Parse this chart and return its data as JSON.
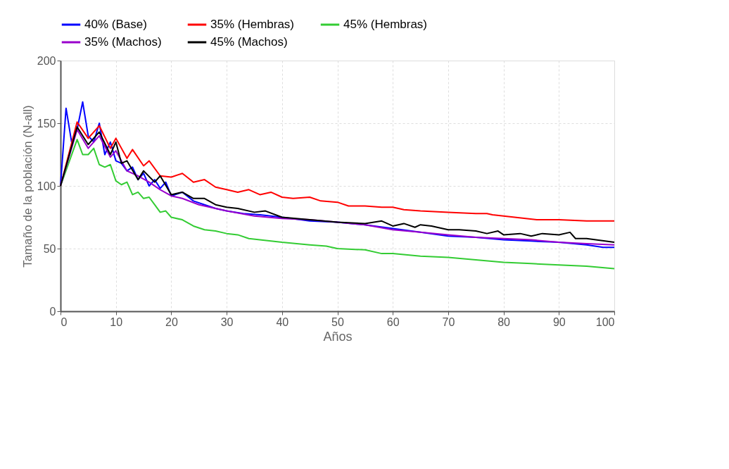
{
  "chart_data": {
    "type": "line",
    "xlabel": "Años",
    "ylabel": "Tamaño de la población (N-all)",
    "xlim": [
      0,
      100
    ],
    "xticks": [
      0,
      10,
      20,
      30,
      40,
      50,
      60,
      70,
      80,
      90,
      100
    ],
    "ylim": [
      0,
      200
    ],
    "yticks": [
      0,
      50,
      100,
      150,
      200
    ],
    "grid": true,
    "legend": "top",
    "marker": "none",
    "line_style": "solid",
    "series": [
      {
        "name": "40% (Base)",
        "color": "#0000ff",
        "x": [
          0,
          1,
          2,
          3,
          4,
          5,
          6,
          7,
          8,
          9,
          10,
          11,
          12,
          13,
          14,
          15,
          16,
          17,
          18,
          19,
          20,
          22,
          24,
          26,
          28,
          30,
          33,
          36,
          40,
          45,
          50,
          55,
          60,
          65,
          70,
          75,
          80,
          85,
          90,
          95,
          98,
          100
        ],
        "values": [
          100,
          162,
          135,
          145,
          167,
          140,
          135,
          150,
          125,
          135,
          120,
          118,
          112,
          115,
          105,
          110,
          100,
          105,
          98,
          103,
          92,
          95,
          88,
          85,
          82,
          80,
          78,
          77,
          75,
          72,
          71,
          69,
          66,
          63,
          60,
          59,
          57,
          56,
          55,
          53,
          51,
          51
        ]
      },
      {
        "name": "35% (Hembras)",
        "color": "#ff0000",
        "x": [
          0,
          3,
          5,
          7,
          9,
          10,
          12,
          13,
          15,
          16,
          18,
          20,
          22,
          24,
          26,
          28,
          30,
          32,
          34,
          36,
          38,
          40,
          42,
          45,
          47,
          50,
          52,
          55,
          58,
          60,
          62,
          65,
          70,
          75,
          77,
          78,
          80,
          82,
          84,
          86,
          90,
          95,
          100
        ],
        "values": [
          100,
          151,
          138,
          148,
          130,
          138,
          122,
          129,
          116,
          120,
          108,
          107,
          110,
          103,
          105,
          99,
          97,
          95,
          97,
          93,
          95,
          91,
          90,
          91,
          88,
          87,
          84,
          84,
          83,
          83,
          81,
          80,
          79,
          78,
          78,
          77,
          76,
          75,
          74,
          73,
          73,
          72,
          72
        ]
      },
      {
        "name": "45% (Hembras)",
        "color": "#33cc33",
        "x": [
          0,
          3,
          4,
          5,
          6,
          7,
          8,
          9,
          10,
          11,
          12,
          13,
          14,
          15,
          16,
          17,
          18,
          19,
          20,
          22,
          24,
          26,
          28,
          30,
          32,
          34,
          36,
          38,
          40,
          45,
          48,
          50,
          55,
          58,
          60,
          65,
          70,
          75,
          80,
          85,
          90,
          95,
          100
        ],
        "values": [
          100,
          137,
          125,
          125,
          130,
          117,
          115,
          117,
          104,
          101,
          103,
          93,
          95,
          90,
          91,
          85,
          79,
          80,
          75,
          73,
          68,
          65,
          64,
          62,
          61,
          58,
          57,
          56,
          55,
          53,
          52,
          50,
          49,
          46,
          46,
          44,
          43,
          41,
          39,
          38,
          37,
          36,
          34
        ]
      },
      {
        "name": "35% (Machos)",
        "color": "#9900cc",
        "x": [
          0,
          3,
          5,
          7,
          9,
          10,
          12,
          14,
          16,
          18,
          20,
          22,
          25,
          28,
          30,
          35,
          40,
          45,
          50,
          55,
          60,
          65,
          70,
          75,
          80,
          85,
          90,
          95,
          100
        ],
        "values": [
          100,
          145,
          130,
          140,
          123,
          128,
          112,
          108,
          103,
          97,
          92,
          90,
          85,
          82,
          80,
          76,
          74,
          73,
          71,
          69,
          65,
          63,
          61,
          59,
          58,
          57,
          55,
          54,
          53
        ]
      },
      {
        "name": "45% (Machos)",
        "color": "#000000",
        "x": [
          0,
          3,
          5,
          7,
          9,
          10,
          11,
          12,
          14,
          15,
          17,
          18,
          20,
          22,
          24,
          26,
          28,
          30,
          32,
          35,
          37,
          40,
          45,
          50,
          55,
          58,
          60,
          62,
          64,
          65,
          67,
          70,
          72,
          75,
          77,
          79,
          80,
          83,
          85,
          87,
          90,
          92,
          93,
          95,
          100
        ],
        "values": [
          100,
          147,
          133,
          143,
          125,
          135,
          118,
          120,
          105,
          112,
          103,
          108,
          93,
          95,
          90,
          90,
          85,
          83,
          82,
          79,
          80,
          75,
          73,
          71,
          70,
          72,
          68,
          70,
          67,
          69,
          68,
          65,
          65,
          64,
          62,
          64,
          61,
          62,
          60,
          62,
          61,
          63,
          58,
          58,
          55
        ]
      }
    ]
  }
}
